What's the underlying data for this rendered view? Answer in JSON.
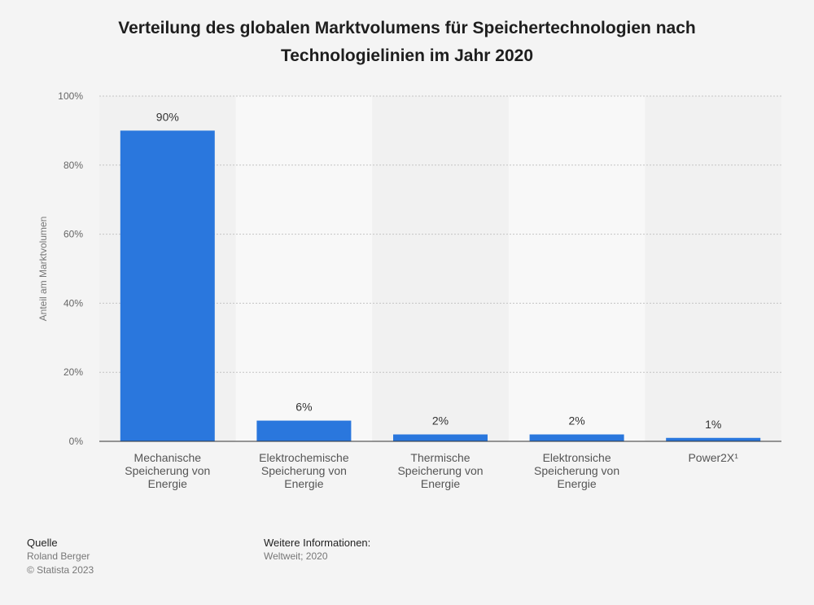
{
  "chart_data": {
    "type": "bar",
    "title": "Verteilung des globalen Marktvolumens für Speichertechnologien nach Technologielinien im Jahr 2020",
    "categories": [
      [
        "Mechanische",
        "Speicherung von",
        "Energie"
      ],
      [
        "Elektrochemische",
        "Speicherung von",
        "Energie"
      ],
      [
        "Thermische",
        "Speicherung von",
        "Energie"
      ],
      [
        "Elektronsiche",
        "Speicherung von",
        "Energie"
      ],
      [
        "Power2X¹"
      ]
    ],
    "values": [
      90,
      6,
      2,
      2,
      1
    ],
    "value_labels": [
      "90%",
      "6%",
      "2%",
      "2%",
      "1%"
    ],
    "ylabel": "Anteil am Marktvolumen",
    "ylim": [
      0,
      100
    ],
    "yticks": [
      "0%",
      "20%",
      "40%",
      "60%",
      "80%",
      "100%"
    ],
    "bar_color": "#2a77dd",
    "grid": true
  },
  "footer": {
    "source_heading": "Quelle",
    "source_lines": [
      "Roland Berger",
      "© Statista 2023"
    ],
    "info_heading": "Weitere Informationen:",
    "info_text": "Weltweit; 2020"
  }
}
